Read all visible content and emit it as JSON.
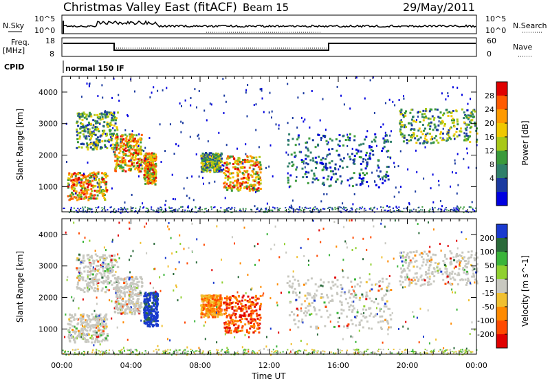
{
  "header": {
    "title": "Christmas Valley East (fitACF)",
    "beam": "Beam 15",
    "date": "29/May/2011"
  },
  "top_panels": {
    "nsky_label": "N.Sky",
    "nsky_ticks": [
      "10^5",
      "10^0"
    ],
    "nsearch_label": "N.Search",
    "nsearch_ticks": [
      "10^5",
      "10^0"
    ],
    "freq_label_line1": "Freq.",
    "freq_label_line2": "[MHz]",
    "freq_ticks": [
      "18",
      "8"
    ],
    "nave_label": "Nave",
    "nave_ticks": [
      "60",
      "0"
    ],
    "cpid_label": "CPID",
    "cpid_value": "normal 150 IF"
  },
  "chart_data": [
    {
      "type": "heatmap",
      "name": "power-panel",
      "ylabel": "Slant Range [km]",
      "xlabel": "",
      "y_ticks": [
        "1000",
        "2000",
        "3000",
        "4000"
      ],
      "ylim": [
        200,
        4500
      ],
      "xlim": [
        0,
        24
      ],
      "colorbar": {
        "label": "Power [dB]",
        "ticks": [
          "28",
          "24",
          "20",
          "16",
          "12",
          "8",
          "4"
        ],
        "colors": [
          "#e00000",
          "#ff5a00",
          "#ff9a00",
          "#f0c800",
          "#a8c818",
          "#3a9a3a",
          "#2f7f6a",
          "#1a3aa0",
          "#0000e0"
        ]
      },
      "echo_regions": [
        {
          "t0": 0.3,
          "t1": 2.6,
          "r0": 600,
          "r1": 1500,
          "level": "high"
        },
        {
          "t0": 0.8,
          "t1": 3.2,
          "r0": 2200,
          "r1": 3400,
          "level": "mid"
        },
        {
          "t0": 3.0,
          "t1": 4.6,
          "r0": 1500,
          "r1": 2700,
          "level": "high"
        },
        {
          "t0": 4.7,
          "t1": 5.4,
          "r0": 1100,
          "r1": 2100,
          "level": "high"
        },
        {
          "t0": 8.0,
          "t1": 9.2,
          "r0": 1500,
          "r1": 2100,
          "level": "mid"
        },
        {
          "t0": 9.3,
          "t1": 11.5,
          "r0": 900,
          "r1": 2000,
          "level": "high"
        },
        {
          "t0": 13.0,
          "t1": 19.0,
          "r0": 1000,
          "r1": 2700,
          "level": "low"
        },
        {
          "t0": 19.5,
          "t1": 24.0,
          "r0": 2400,
          "r1": 3500,
          "level": "mid"
        }
      ]
    },
    {
      "type": "heatmap",
      "name": "velocity-panel",
      "ylabel": "Slant Range [km]",
      "xlabel": "Time UT",
      "x_ticks": [
        "00:00",
        "04:00",
        "08:00",
        "12:00",
        "16:00",
        "20:00",
        "00:00"
      ],
      "y_ticks": [
        "1000",
        "2000",
        "3000",
        "4000"
      ],
      "ylim": [
        200,
        4500
      ],
      "xlim": [
        0,
        24
      ],
      "colorbar": {
        "label": "Velocity [m s^-1]",
        "ticks": [
          "200",
          "100",
          "50",
          "15",
          "-15",
          "-50",
          "-100",
          "-200"
        ],
        "colors": [
          "#1a3acf",
          "#2a6a3a",
          "#3ab43a",
          "#90d030",
          "#c8c8c0",
          "#f0c030",
          "#ff8a00",
          "#ff4a00",
          "#e00000"
        ]
      },
      "echo_regions": [
        {
          "t0": 0.3,
          "t1": 2.6,
          "r0": 600,
          "r1": 1500,
          "level": "ground"
        },
        {
          "t0": 0.8,
          "t1": 3.2,
          "r0": 2200,
          "r1": 3400,
          "level": "ground"
        },
        {
          "t0": 3.0,
          "t1": 4.6,
          "r0": 1500,
          "r1": 2700,
          "level": "ground"
        },
        {
          "t0": 4.7,
          "t1": 5.5,
          "r0": 1100,
          "r1": 2200,
          "level": "positive"
        },
        {
          "t0": 8.0,
          "t1": 9.2,
          "r0": 1400,
          "r1": 2100,
          "level": "negative-mid"
        },
        {
          "t0": 9.3,
          "t1": 11.5,
          "r0": 900,
          "r1": 2100,
          "level": "negative"
        },
        {
          "t0": 13.0,
          "t1": 19.0,
          "r0": 1000,
          "r1": 2700,
          "level": "ground"
        },
        {
          "t0": 19.5,
          "t1": 24.0,
          "r0": 2400,
          "r1": 3500,
          "level": "ground"
        }
      ]
    }
  ]
}
